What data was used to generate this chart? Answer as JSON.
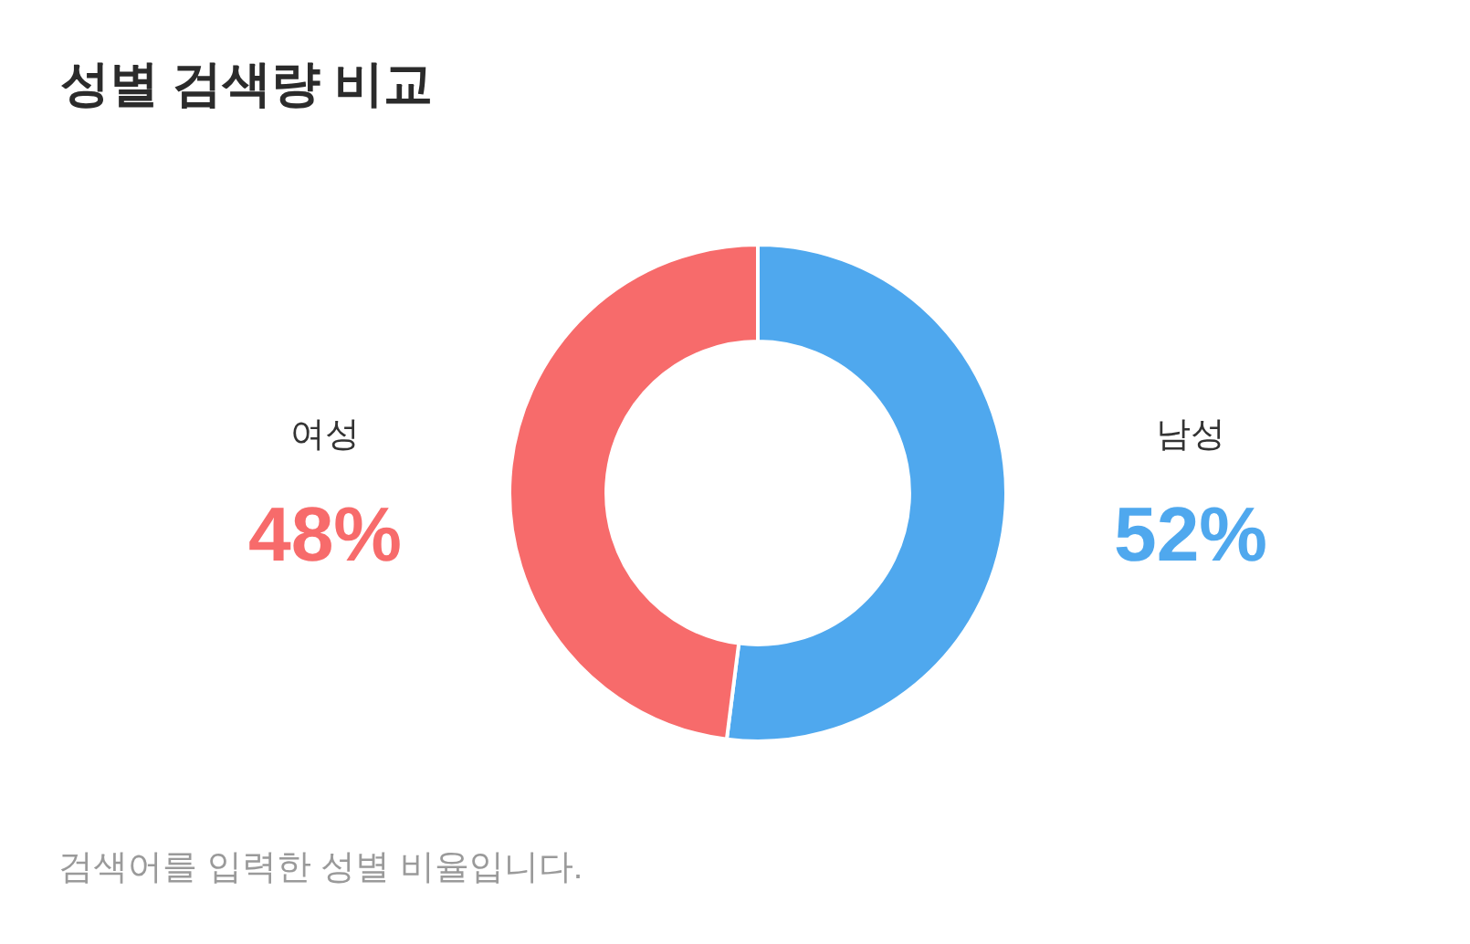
{
  "chart_data": {
    "type": "donut",
    "title": "성별 검색량 비교",
    "categories": [
      "남성",
      "여성"
    ],
    "values": [
      52,
      48
    ],
    "colors": [
      "#4fa8ee",
      "#f76b6b"
    ],
    "value_labels": [
      "52%",
      "48%"
    ],
    "annotations": [
      "검색어를 입력한 성별 비율입니다."
    ]
  }
}
